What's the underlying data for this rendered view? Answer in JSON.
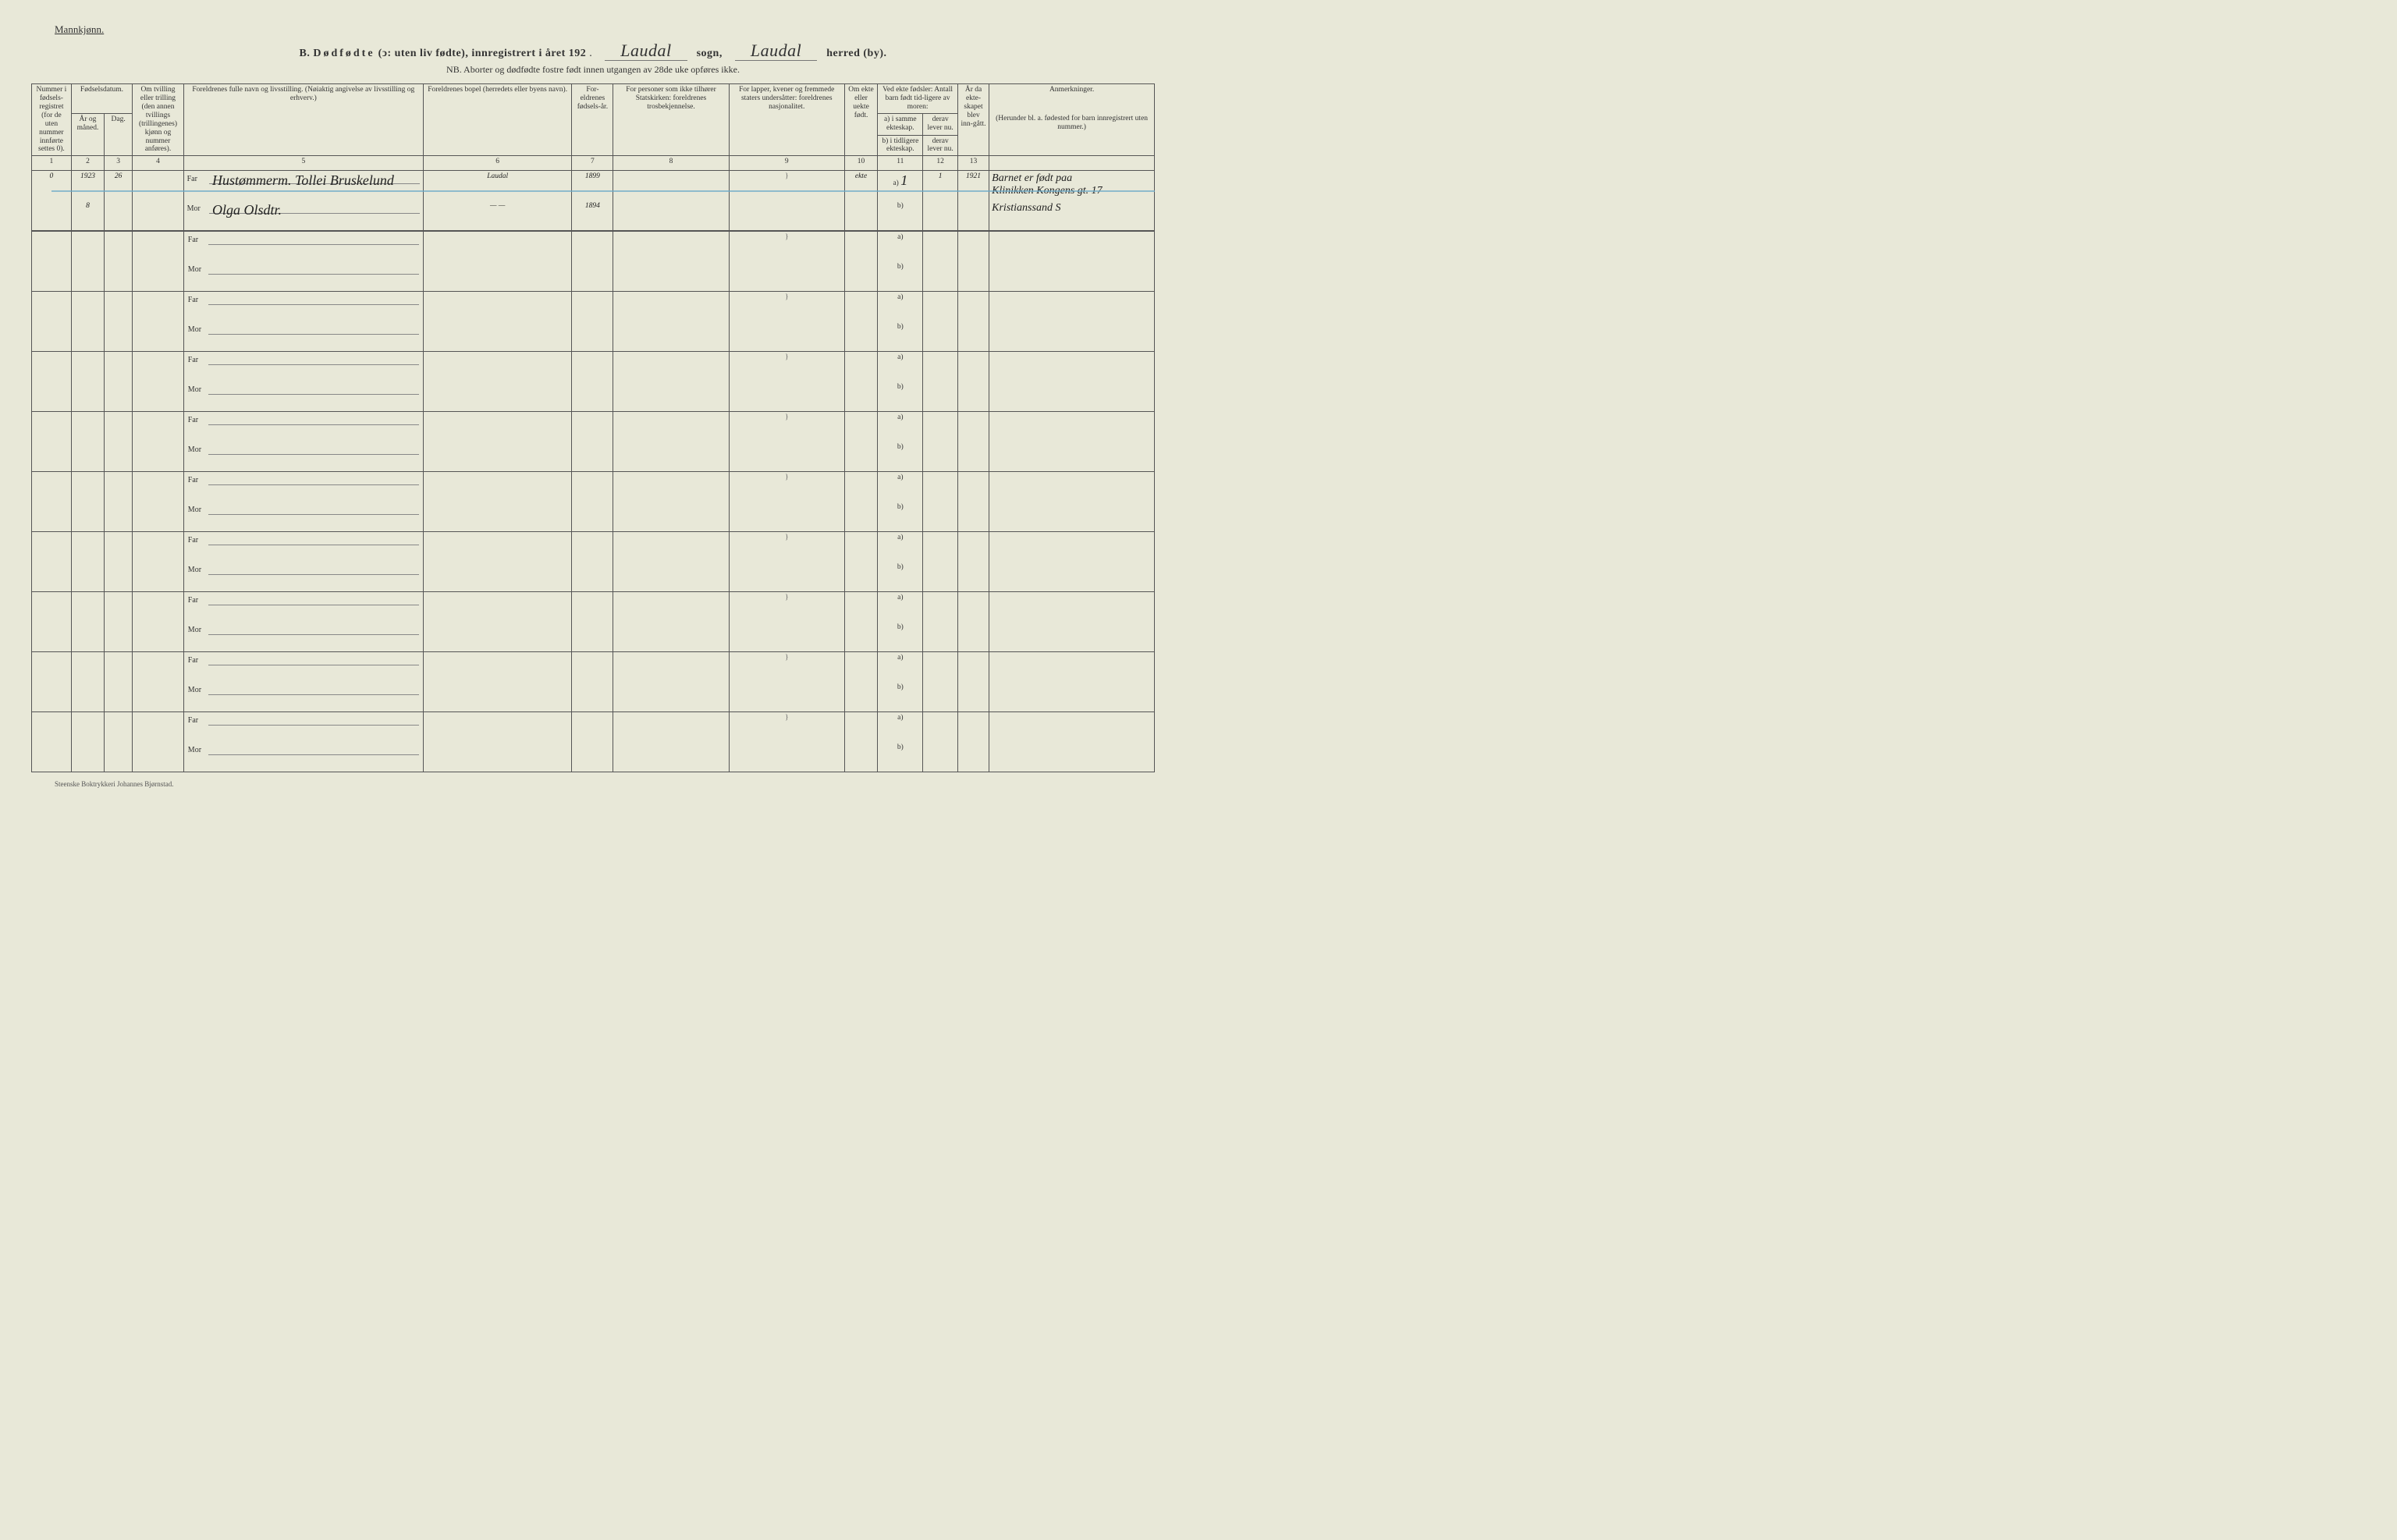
{
  "header": {
    "gender_label": "Mannkjønn.",
    "section_letter": "B.",
    "title_main": "Dødfødte",
    "title_paren": "(ↄ: uten liv fødte),",
    "title_reg": "innregistrert i året 192",
    "year_suffix": ".",
    "sogn_value": "Laudal",
    "sogn_label": "sogn,",
    "herred_value": "Laudal",
    "herred_label": "herred (by).",
    "nb_line": "NB. Aborter og dødfødte fostre født innen utgangen av 28de uke opføres ikke."
  },
  "columns": {
    "c1": "Nummer i fødsels-registret (for de uten nummer innførte settes 0).",
    "c2_top": "Fødselsdatum.",
    "c2a": "År og måned.",
    "c2b": "Dag.",
    "c4": "Om tvilling eller trilling (den annen tvillings (trillingenes) kjønn og nummer anføres).",
    "c5": "Foreldrenes fulle navn og livsstilling. (Nøiaktig angivelse av livsstilling og erhverv.)",
    "c6": "Foreldrenes bopel (herredets eller byens navn).",
    "c7": "For-eldrenes fødsels-år.",
    "c8": "For personer som ikke tilhører Statskirken: foreldrenes trosbekjennelse.",
    "c9": "For lapper, kvener og fremmede staters undersåtter: foreldrenes nasjonalitet.",
    "c10": "Om ekte eller uekte født.",
    "c11_top": "Ved ekte fødsler: Antall barn født tid-ligere av moren:",
    "c11a": "a) i samme ekteskap.",
    "c11b": "b) i tidligere ekteskap.",
    "c12a": "derav lever nu.",
    "c12b": "derav lever nu.",
    "c13": "År da ekte-skapet blev inn-gått.",
    "c14_top": "Anmerkninger.",
    "c14_sub": "(Herunder bl. a. fødested for barn innregistrert uten nummer.)"
  },
  "colnums": [
    "1",
    "2",
    "3",
    "4",
    "5",
    "6",
    "7",
    "8",
    "9",
    "10",
    "11",
    "12",
    "13",
    ""
  ],
  "row1": {
    "num": "0",
    "year": "1923",
    "month": "8",
    "day": "26",
    "far_label": "Far",
    "mor_label": "Mor",
    "far_name": "Hustømmerm. Tollei Bruskelund",
    "mor_name": "Olga Olsdtr.",
    "bopel_far": "Laudal",
    "bopel_mor": "— —",
    "faar_far": "1899",
    "faar_mor": "1894",
    "ekte": "ekte",
    "c11a": "1",
    "c12a": "1",
    "c13": "1921",
    "anm1": "Barnet er født paa",
    "anm2": "Klinikken Kongens gt. 17",
    "anm3": "Kristianssand S"
  },
  "labels": {
    "far": "Far",
    "mor": "Mor",
    "a": "a)",
    "b": "b)"
  },
  "footer": "Steenske Boktrykkeri Johannes Bjørnstad."
}
